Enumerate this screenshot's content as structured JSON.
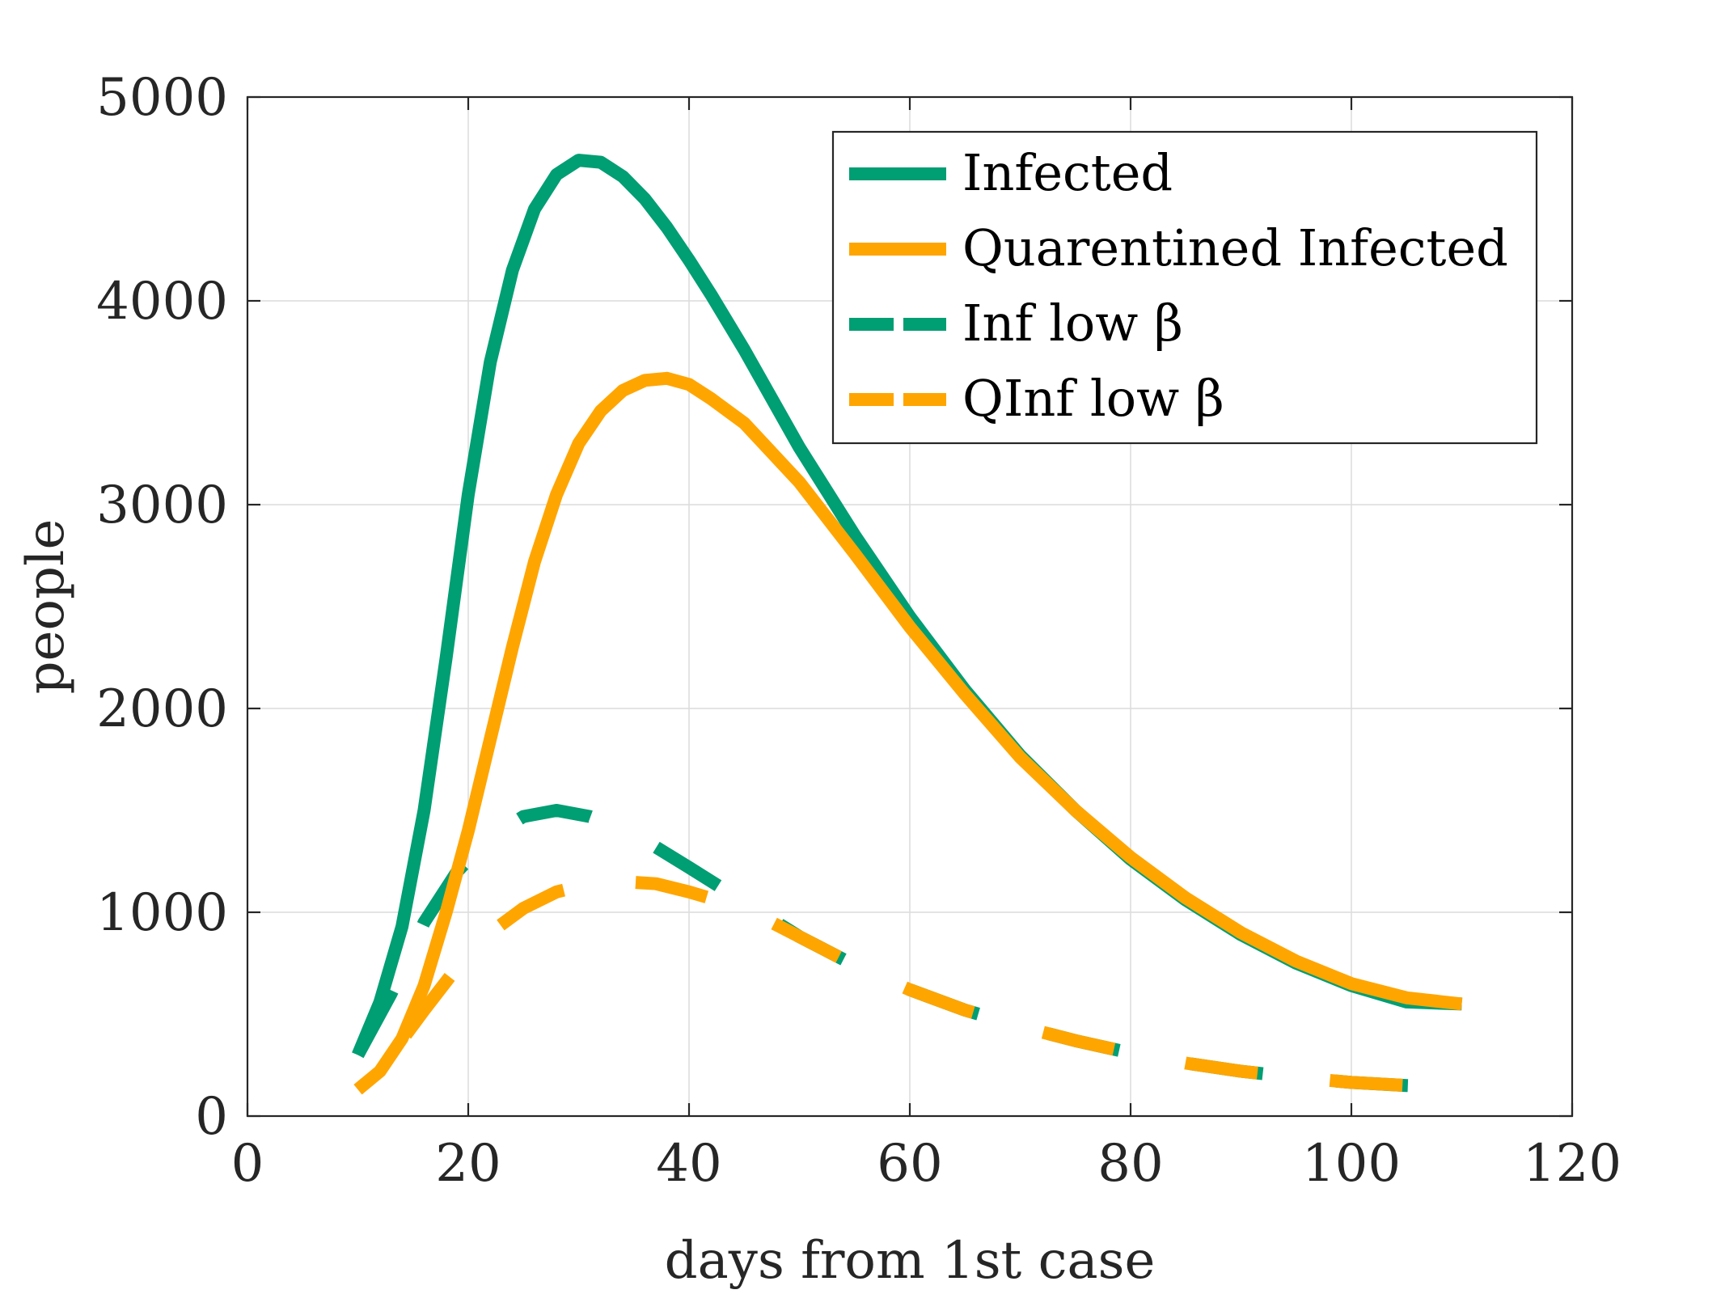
{
  "chart_data": {
    "type": "line",
    "title": "",
    "xlabel": "days from 1st case",
    "ylabel": "people",
    "xlim": [
      0,
      120
    ],
    "ylim": [
      0,
      5000
    ],
    "xticks": [
      0,
      20,
      40,
      60,
      80,
      100,
      120
    ],
    "yticks": [
      0,
      1000,
      2000,
      3000,
      4000,
      5000
    ],
    "grid": true,
    "legend_position": "top-right",
    "series": [
      {
        "name": "Infected",
        "color": "#009E73",
        "style": "solid",
        "x": [
          10,
          12,
          14,
          16,
          18,
          20,
          22,
          24,
          26,
          28,
          30,
          32,
          34,
          36,
          38,
          40,
          42,
          45,
          50,
          55,
          60,
          65,
          70,
          75,
          80,
          85,
          90,
          95,
          100,
          105,
          110
        ],
        "y": [
          300,
          560,
          930,
          1500,
          2250,
          3050,
          3700,
          4150,
          4450,
          4620,
          4690,
          4680,
          4610,
          4500,
          4360,
          4200,
          4030,
          3760,
          3280,
          2850,
          2450,
          2090,
          1770,
          1500,
          1260,
          1060,
          890,
          750,
          640,
          560,
          550
        ]
      },
      {
        "name": "Quarentined Infected",
        "color": "#FFA500",
        "style": "solid",
        "x": [
          10,
          12,
          14,
          16,
          18,
          20,
          22,
          24,
          26,
          28,
          30,
          32,
          34,
          36,
          38,
          40,
          42,
          45,
          50,
          55,
          60,
          65,
          70,
          75,
          80,
          85,
          90,
          95,
          100,
          105,
          110
        ],
        "y": [
          130,
          220,
          380,
          640,
          1000,
          1400,
          1850,
          2300,
          2720,
          3050,
          3300,
          3460,
          3560,
          3610,
          3620,
          3590,
          3520,
          3400,
          3110,
          2760,
          2400,
          2070,
          1760,
          1500,
          1270,
          1070,
          900,
          760,
          650,
          580,
          550
        ]
      },
      {
        "name": "Inf low β",
        "color": "#009E73",
        "style": "dashed",
        "x": [
          10,
          13,
          16,
          19,
          22,
          25,
          28,
          31,
          34,
          37,
          40,
          45,
          50,
          55,
          60,
          65,
          70,
          75,
          80,
          85,
          90,
          95,
          100,
          105,
          110
        ],
        "y": [
          300,
          600,
          950,
          1200,
          1370,
          1470,
          1500,
          1470,
          1410,
          1320,
          1220,
          1050,
          880,
          740,
          620,
          520,
          440,
          370,
          310,
          260,
          220,
          190,
          165,
          150,
          140
        ]
      },
      {
        "name": "QInf low β",
        "color": "#FFA500",
        "style": "dashed",
        "x": [
          10,
          13,
          16,
          19,
          22,
          25,
          28,
          31,
          34,
          37,
          40,
          45,
          50,
          55,
          60,
          65,
          70,
          75,
          80,
          85,
          90,
          95,
          100,
          105,
          110
        ],
        "y": [
          130,
          300,
          520,
          730,
          900,
          1020,
          1100,
          1140,
          1150,
          1140,
          1100,
          1020,
          880,
          740,
          620,
          520,
          440,
          370,
          310,
          260,
          220,
          190,
          165,
          150,
          140
        ]
      }
    ],
    "legend": [
      {
        "label": "Infected",
        "color": "#009E73",
        "style": "solid"
      },
      {
        "label": "Quarentined Infected",
        "color": "#FFA500",
        "style": "solid"
      },
      {
        "label": "Inf low β",
        "color": "#009E73",
        "style": "dashed"
      },
      {
        "label": "QInf low β",
        "color": "#FFA500",
        "style": "dashed"
      }
    ]
  }
}
